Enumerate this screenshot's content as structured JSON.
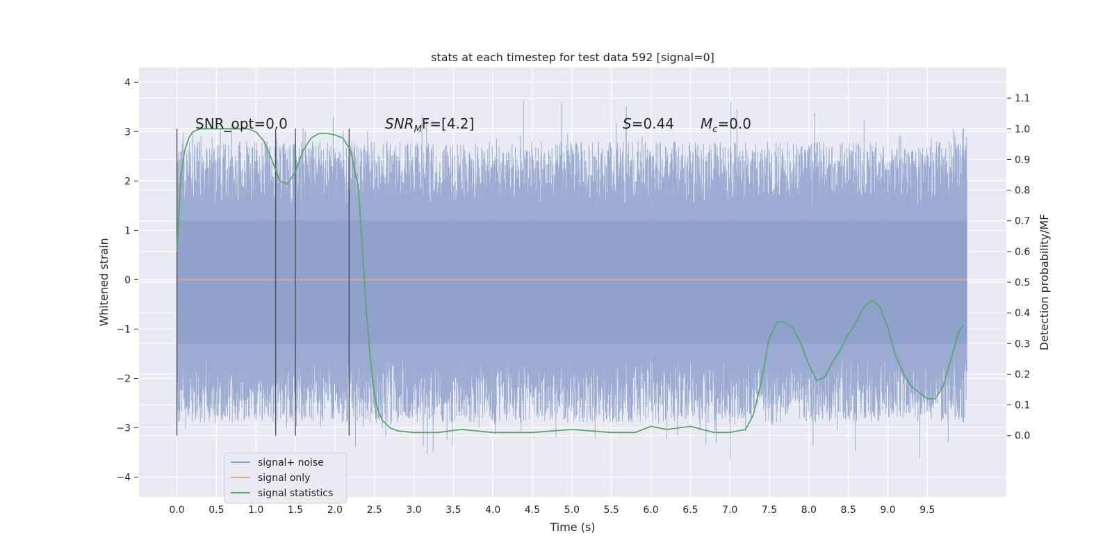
{
  "chart_data": {
    "type": "line",
    "title": "stats at each timestep for test data 592 [signal=0]",
    "xlabel": "Time (s)",
    "ylabel": "Whitened strain",
    "ylabel_right": "Detection probability/MF",
    "xlim": [
      -0.48,
      10.5
    ],
    "ylim": [
      -4.4,
      4.3
    ],
    "ylim_right": [
      -0.2,
      1.2
    ],
    "xticks": [
      "0.0",
      "0.5",
      "1.0",
      "1.5",
      "2.0",
      "2.5",
      "3.0",
      "3.5",
      "4.0",
      "4.5",
      "5.0",
      "5.5",
      "6.0",
      "6.5",
      "7.0",
      "7.5",
      "8.0",
      "8.5",
      "9.0",
      "9.5"
    ],
    "yticks": [
      "4",
      "3",
      "2",
      "1",
      "0",
      "−1",
      "−2",
      "−3",
      "−4"
    ],
    "yticks_right": [
      "1.1",
      "1.0",
      "0.9",
      "0.8",
      "0.7",
      "0.6",
      "0.5",
      "0.4",
      "0.3",
      "0.2",
      "0.1",
      "0.0"
    ],
    "grid": true,
    "legend_position": "lower-left",
    "annotations": {
      "snr_opt": "SNR_opt=0.0",
      "snr_mf_prefix": "SNR",
      "snr_mf_sub": "M",
      "snr_mf_suffix": "F=[4.2]",
      "s_var": "S",
      "s_val": "=0.44",
      "mc_var": "M",
      "mc_sub": "c",
      "mc_val": "=0.0"
    },
    "vertical_markers_x": [
      0.0,
      1.25,
      1.5,
      2.18
    ],
    "series": [
      {
        "name": "signal+ noise",
        "color": "#8da0cb",
        "x_range": [
          0.0,
          10.0
        ],
        "band_inner": [
          -1.3,
          1.2
        ],
        "envelope_typical": [
          -3.0,
          3.0
        ],
        "extremes_max": 3.93,
        "extremes_min": -3.97
      },
      {
        "name": "signal only",
        "color": "#e8a58a",
        "x": [
          0.0,
          10.0
        ],
        "y": [
          0.0,
          0.0
        ]
      },
      {
        "name": "signal statistics",
        "color": "#55a868",
        "axis": "right",
        "x": [
          0.0,
          0.05,
          0.1,
          0.15,
          0.2,
          0.3,
          0.5,
          0.7,
          0.9,
          1.0,
          1.1,
          1.2,
          1.3,
          1.4,
          1.5,
          1.6,
          1.7,
          1.8,
          1.9,
          2.0,
          2.1,
          2.2,
          2.3,
          2.35,
          2.4,
          2.45,
          2.5,
          2.55,
          2.6,
          2.7,
          2.8,
          3.0,
          3.3,
          3.6,
          4.0,
          4.5,
          5.0,
          5.5,
          5.8,
          6.0,
          6.2,
          6.5,
          6.8,
          7.0,
          7.2,
          7.3,
          7.4,
          7.5,
          7.6,
          7.7,
          7.8,
          7.9,
          8.0,
          8.1,
          8.2,
          8.3,
          8.4,
          8.5,
          8.6,
          8.7,
          8.8,
          8.9,
          9.0,
          9.1,
          9.2,
          9.3,
          9.4,
          9.5,
          9.6,
          9.7,
          9.8,
          9.9,
          9.95
        ],
        "y": [
          0.6,
          0.85,
          0.93,
          0.97,
          0.99,
          1.0,
          1.0,
          1.0,
          1.0,
          0.99,
          0.96,
          0.9,
          0.83,
          0.82,
          0.86,
          0.93,
          0.97,
          0.985,
          0.985,
          0.98,
          0.97,
          0.93,
          0.8,
          0.6,
          0.4,
          0.25,
          0.13,
          0.08,
          0.05,
          0.025,
          0.015,
          0.01,
          0.01,
          0.02,
          0.01,
          0.01,
          0.02,
          0.01,
          0.01,
          0.03,
          0.02,
          0.03,
          0.01,
          0.01,
          0.02,
          0.07,
          0.18,
          0.32,
          0.37,
          0.37,
          0.35,
          0.3,
          0.23,
          0.18,
          0.19,
          0.24,
          0.28,
          0.33,
          0.37,
          0.42,
          0.44,
          0.42,
          0.35,
          0.26,
          0.2,
          0.16,
          0.14,
          0.12,
          0.12,
          0.16,
          0.25,
          0.34,
          0.36
        ]
      }
    ]
  }
}
